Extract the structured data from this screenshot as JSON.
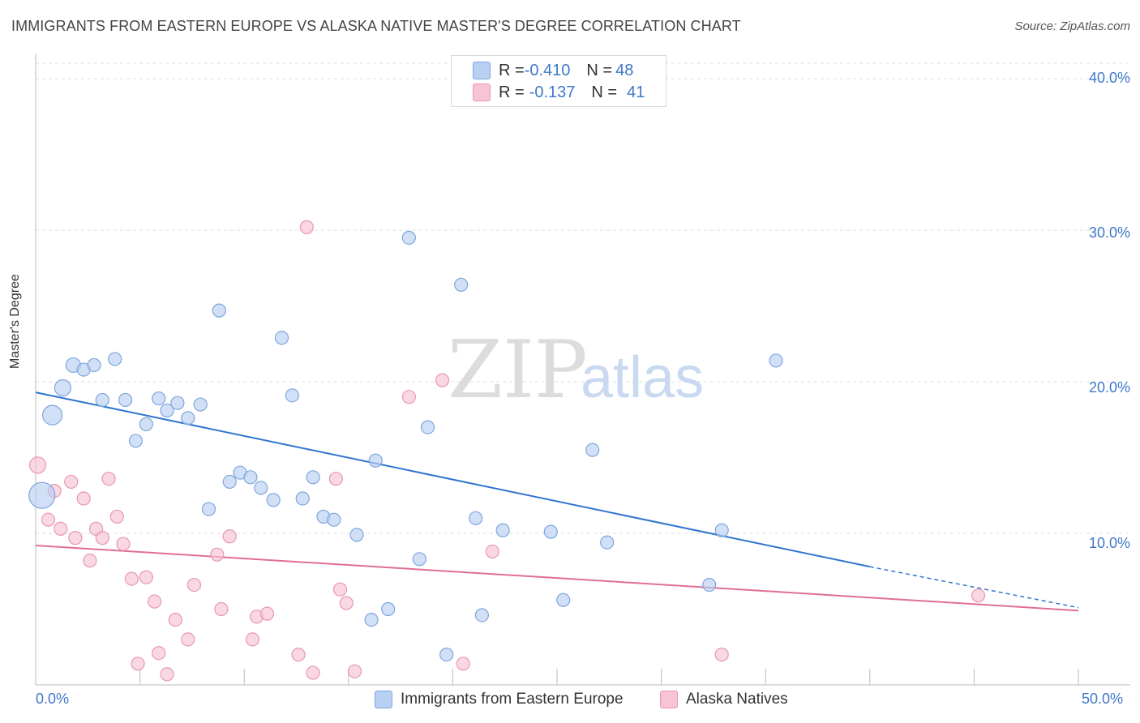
{
  "header": {
    "title": "IMMIGRANTS FROM EASTERN EUROPE VS ALASKA NATIVE MASTER'S DEGREE CORRELATION CHART",
    "source": "Source: ZipAtlas.com"
  },
  "legend": {
    "blue": {
      "r_label": "R = ",
      "r_value": "-0.410",
      "n_label": "N = ",
      "n_value": "48"
    },
    "pink": {
      "r_label": "R = ",
      "r_value": "-0.137",
      "n_label": "N = ",
      "n_value": "41"
    }
  },
  "watermark": {
    "zip": "ZIP",
    "atlas": "atlas"
  },
  "colors": {
    "blue_fill": "#b8d0f2",
    "blue_stroke": "#7fa6dc",
    "blue_line": "#2f74d0",
    "pink_fill": "#f8c3d3",
    "pink_stroke": "#e897b1",
    "pink_line": "#e06e98",
    "tick_text": "#3f78c9"
  },
  "chart_data": {
    "type": "scatter",
    "title": "IMMIGRANTS FROM EASTERN EUROPE VS ALASKA NATIVE MASTER'S DEGREE CORRELATION CHART",
    "xlabel": "",
    "ylabel": "Master's Degree",
    "xlim": [
      0,
      50
    ],
    "ylim": [
      0,
      40
    ],
    "x_tick_labels": [
      "0.0%",
      "50.0%"
    ],
    "y_tick_labels": [
      "10.0%",
      "20.0%",
      "30.0%",
      "40.0%"
    ],
    "y_ticks": [
      10,
      20,
      30,
      40
    ],
    "grid": true,
    "legend_position": "top-center",
    "series": [
      {
        "name": "Immigrants from Eastern Europe",
        "color": "#b8d0f2",
        "trend": {
          "x": [
            0,
            40
          ],
          "y": [
            19.3,
            7.8
          ],
          "dashed_to": [
            50,
            5.1
          ]
        },
        "points": [
          {
            "x": 0.3,
            "y": 12.5,
            "s": 16
          },
          {
            "x": 0.8,
            "y": 17.8,
            "s": 12
          },
          {
            "x": 1.3,
            "y": 19.6,
            "s": 10
          },
          {
            "x": 1.8,
            "y": 21.1,
            "s": 9
          },
          {
            "x": 2.3,
            "y": 20.8,
            "s": 8
          },
          {
            "x": 2.8,
            "y": 21.1,
            "s": 8
          },
          {
            "x": 3.2,
            "y": 18.8,
            "s": 8
          },
          {
            "x": 3.8,
            "y": 21.5,
            "s": 8
          },
          {
            "x": 4.3,
            "y": 18.8,
            "s": 8
          },
          {
            "x": 4.8,
            "y": 16.1,
            "s": 8
          },
          {
            "x": 5.3,
            "y": 17.2,
            "s": 8
          },
          {
            "x": 5.9,
            "y": 18.9,
            "s": 8
          },
          {
            "x": 6.3,
            "y": 18.1,
            "s": 8
          },
          {
            "x": 6.8,
            "y": 18.6,
            "s": 8
          },
          {
            "x": 7.3,
            "y": 17.6,
            "s": 8
          },
          {
            "x": 7.9,
            "y": 18.5,
            "s": 8
          },
          {
            "x": 8.3,
            "y": 11.6,
            "s": 8
          },
          {
            "x": 8.8,
            "y": 24.7,
            "s": 8
          },
          {
            "x": 9.3,
            "y": 13.4,
            "s": 8
          },
          {
            "x": 9.8,
            "y": 14.0,
            "s": 8
          },
          {
            "x": 10.3,
            "y": 13.7,
            "s": 8
          },
          {
            "x": 10.8,
            "y": 13.0,
            "s": 8
          },
          {
            "x": 11.4,
            "y": 12.2,
            "s": 8
          },
          {
            "x": 11.8,
            "y": 22.9,
            "s": 8
          },
          {
            "x": 12.3,
            "y": 19.1,
            "s": 8
          },
          {
            "x": 12.8,
            "y": 12.3,
            "s": 8
          },
          {
            "x": 13.3,
            "y": 13.7,
            "s": 8
          },
          {
            "x": 13.8,
            "y": 11.1,
            "s": 8
          },
          {
            "x": 14.3,
            "y": 10.9,
            "s": 8
          },
          {
            "x": 15.4,
            "y": 9.9,
            "s": 8
          },
          {
            "x": 16.1,
            "y": 4.3,
            "s": 8
          },
          {
            "x": 16.3,
            "y": 14.8,
            "s": 8
          },
          {
            "x": 16.9,
            "y": 5.0,
            "s": 8
          },
          {
            "x": 17.9,
            "y": 29.5,
            "s": 8
          },
          {
            "x": 18.4,
            "y": 8.3,
            "s": 8
          },
          {
            "x": 18.8,
            "y": 17.0,
            "s": 8
          },
          {
            "x": 19.7,
            "y": 2.0,
            "s": 8
          },
          {
            "x": 20.4,
            "y": 26.4,
            "s": 8
          },
          {
            "x": 21.1,
            "y": 11.0,
            "s": 8
          },
          {
            "x": 21.4,
            "y": 4.6,
            "s": 8
          },
          {
            "x": 22.4,
            "y": 10.2,
            "s": 8
          },
          {
            "x": 24.7,
            "y": 10.1,
            "s": 8
          },
          {
            "x": 25.3,
            "y": 5.6,
            "s": 8
          },
          {
            "x": 26.7,
            "y": 15.5,
            "s": 8
          },
          {
            "x": 27.4,
            "y": 9.4,
            "s": 8
          },
          {
            "x": 32.3,
            "y": 6.6,
            "s": 8
          },
          {
            "x": 32.9,
            "y": 10.2,
            "s": 8
          },
          {
            "x": 35.5,
            "y": 21.4,
            "s": 8
          }
        ]
      },
      {
        "name": "Alaska Natives",
        "color": "#f8c3d3",
        "trend": {
          "x": [
            0,
            50
          ],
          "y": [
            9.2,
            4.9
          ]
        },
        "points": [
          {
            "x": 0.1,
            "y": 14.5,
            "s": 10
          },
          {
            "x": 0.6,
            "y": 10.9,
            "s": 8
          },
          {
            "x": 0.9,
            "y": 12.8,
            "s": 8
          },
          {
            "x": 1.2,
            "y": 10.3,
            "s": 8
          },
          {
            "x": 1.7,
            "y": 13.4,
            "s": 8
          },
          {
            "x": 1.9,
            "y": 9.7,
            "s": 8
          },
          {
            "x": 2.3,
            "y": 12.3,
            "s": 8
          },
          {
            "x": 2.6,
            "y": 8.2,
            "s": 8
          },
          {
            "x": 2.9,
            "y": 10.3,
            "s": 8
          },
          {
            "x": 3.2,
            "y": 9.7,
            "s": 8
          },
          {
            "x": 3.5,
            "y": 13.6,
            "s": 8
          },
          {
            "x": 3.9,
            "y": 11.1,
            "s": 8
          },
          {
            "x": 4.2,
            "y": 9.3,
            "s": 8
          },
          {
            "x": 4.6,
            "y": 7.0,
            "s": 8
          },
          {
            "x": 4.9,
            "y": 1.4,
            "s": 8
          },
          {
            "x": 5.3,
            "y": 7.1,
            "s": 8
          },
          {
            "x": 5.7,
            "y": 5.5,
            "s": 8
          },
          {
            "x": 5.9,
            "y": 2.1,
            "s": 8
          },
          {
            "x": 6.3,
            "y": 0.7,
            "s": 8
          },
          {
            "x": 6.7,
            "y": 4.3,
            "s": 8
          },
          {
            "x": 7.3,
            "y": 3.0,
            "s": 8
          },
          {
            "x": 7.6,
            "y": 6.6,
            "s": 8
          },
          {
            "x": 8.7,
            "y": 8.6,
            "s": 8
          },
          {
            "x": 8.9,
            "y": 5.0,
            "s": 8
          },
          {
            "x": 9.3,
            "y": 9.8,
            "s": 8
          },
          {
            "x": 10.4,
            "y": 3.0,
            "s": 8
          },
          {
            "x": 10.6,
            "y": 4.5,
            "s": 8
          },
          {
            "x": 11.1,
            "y": 4.7,
            "s": 8
          },
          {
            "x": 12.6,
            "y": 2.0,
            "s": 8
          },
          {
            "x": 13.0,
            "y": 30.2,
            "s": 8
          },
          {
            "x": 13.3,
            "y": 0.8,
            "s": 8
          },
          {
            "x": 14.4,
            "y": 13.6,
            "s": 8
          },
          {
            "x": 14.6,
            "y": 6.3,
            "s": 8
          },
          {
            "x": 14.9,
            "y": 5.4,
            "s": 8
          },
          {
            "x": 15.3,
            "y": 0.9,
            "s": 8
          },
          {
            "x": 17.9,
            "y": 19.0,
            "s": 8
          },
          {
            "x": 19.5,
            "y": 20.1,
            "s": 8
          },
          {
            "x": 20.5,
            "y": 1.4,
            "s": 8
          },
          {
            "x": 21.9,
            "y": 8.8,
            "s": 8
          },
          {
            "x": 32.9,
            "y": 2.0,
            "s": 8
          },
          {
            "x": 45.2,
            "y": 5.9,
            "s": 8
          }
        ]
      }
    ]
  }
}
